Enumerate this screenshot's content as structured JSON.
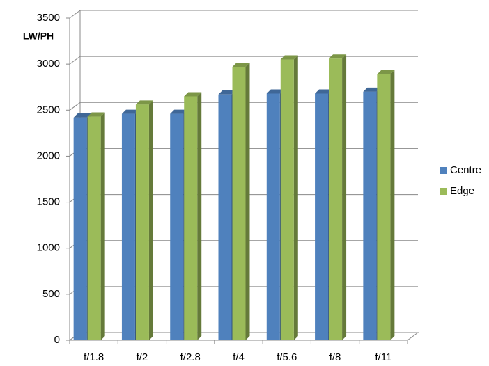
{
  "chart_data": {
    "type": "bar3d",
    "y_label": "LW/PH",
    "categories": [
      "f/1.8",
      "f/2",
      "f/2.8",
      "f/4",
      "f/5.6",
      "f/8",
      "f/11"
    ],
    "series": [
      {
        "name": "Centre",
        "color": "#4f81bd",
        "values": [
          2420,
          2460,
          2460,
          2670,
          2680,
          2680,
          2700
        ]
      },
      {
        "name": "Edge",
        "color": "#9bbb59",
        "values": [
          2430,
          2560,
          2650,
          2970,
          3050,
          3060,
          2890
        ]
      }
    ],
    "ylim": [
      0,
      3500
    ],
    "yticks": [
      0,
      500,
      1000,
      1500,
      2000,
      2500,
      3000,
      3500
    ],
    "grid": true,
    "legend": "right"
  }
}
